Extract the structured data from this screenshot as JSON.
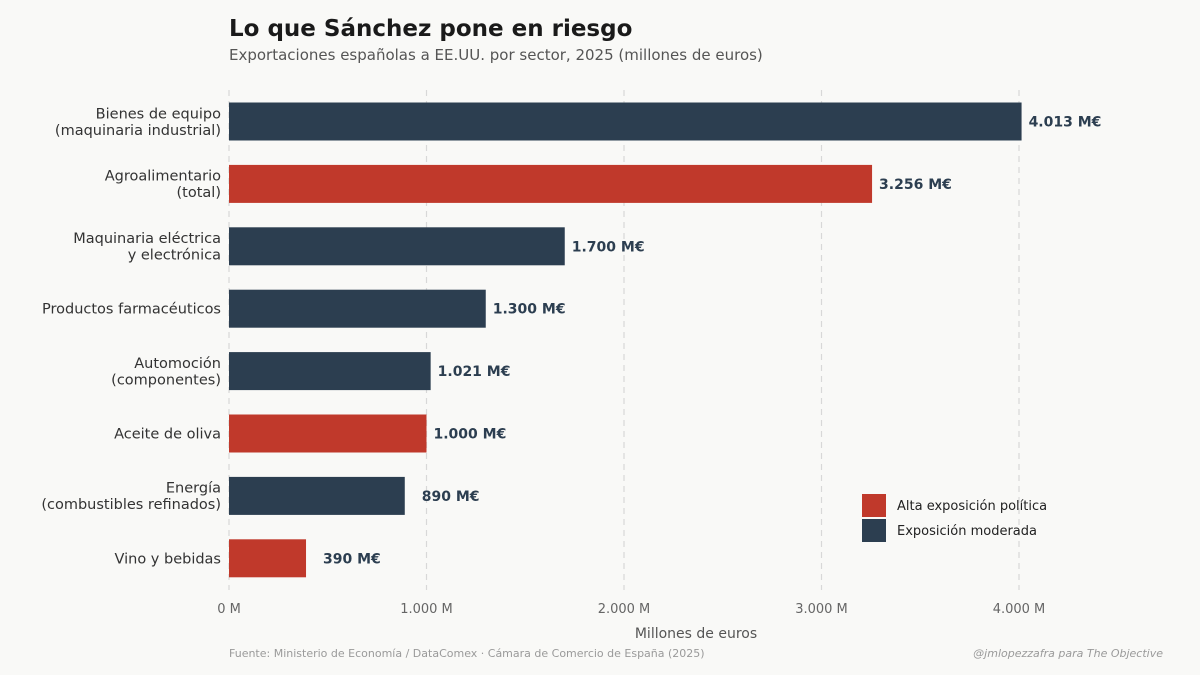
{
  "chart_data": {
    "type": "bar",
    "orientation": "horizontal",
    "title": "Lo que Sánchez pone en riesgo",
    "subtitle": "Exportaciones españolas a EE.UU. por sector, 2025 (millones de euros)",
    "xlabel": "Millones de euros",
    "ylabel": "",
    "xlim": [
      0,
      4800
    ],
    "grid": "vertical dashed",
    "x_ticks": [
      {
        "value": 0,
        "label": "0 M"
      },
      {
        "value": 1000,
        "label": "1.000 M"
      },
      {
        "value": 2000,
        "label": "2.000 M"
      },
      {
        "value": 3000,
        "label": "3.000 M"
      },
      {
        "value": 4000,
        "label": "4.000 M"
      }
    ],
    "categories": [
      [
        "Bienes de equipo",
        "(maquinaria industrial)"
      ],
      [
        "Agroalimentario",
        "(total)"
      ],
      [
        "Maquinaria eléctrica",
        "y electrónica"
      ],
      [
        "Productos farmacéuticos"
      ],
      [
        "Automoción",
        "(componentes)"
      ],
      [
        "Aceite de oliva"
      ],
      [
        "Energía",
        "(combustibles refinados)"
      ],
      [
        "Vino y bebidas"
      ]
    ],
    "values": [
      4013,
      3256,
      1700,
      1300,
      1021,
      1000,
      890,
      390
    ],
    "data_labels": [
      "4.013 M€",
      "3.256 M€",
      "1.700 M€",
      "1.300 M€",
      "1.021 M€",
      "1.000 M€",
      "890 M€",
      "390 M€"
    ],
    "groups": [
      "moderada",
      "alta",
      "moderada",
      "moderada",
      "moderada",
      "alta",
      "moderada",
      "alta"
    ],
    "legend": {
      "placement": "bottom-right",
      "entries": [
        {
          "key": "alta",
          "label": "Alta exposición política",
          "color": "#c0392b"
        },
        {
          "key": "moderada",
          "label": "Exposición moderada",
          "color": "#2c3e50"
        }
      ]
    }
  },
  "footer": {
    "source": "Fuente: Ministerio de Economía / DataComex · Cámara de Comercio de España (2025)",
    "credit": "@jmlopezzafra para The Objective"
  }
}
